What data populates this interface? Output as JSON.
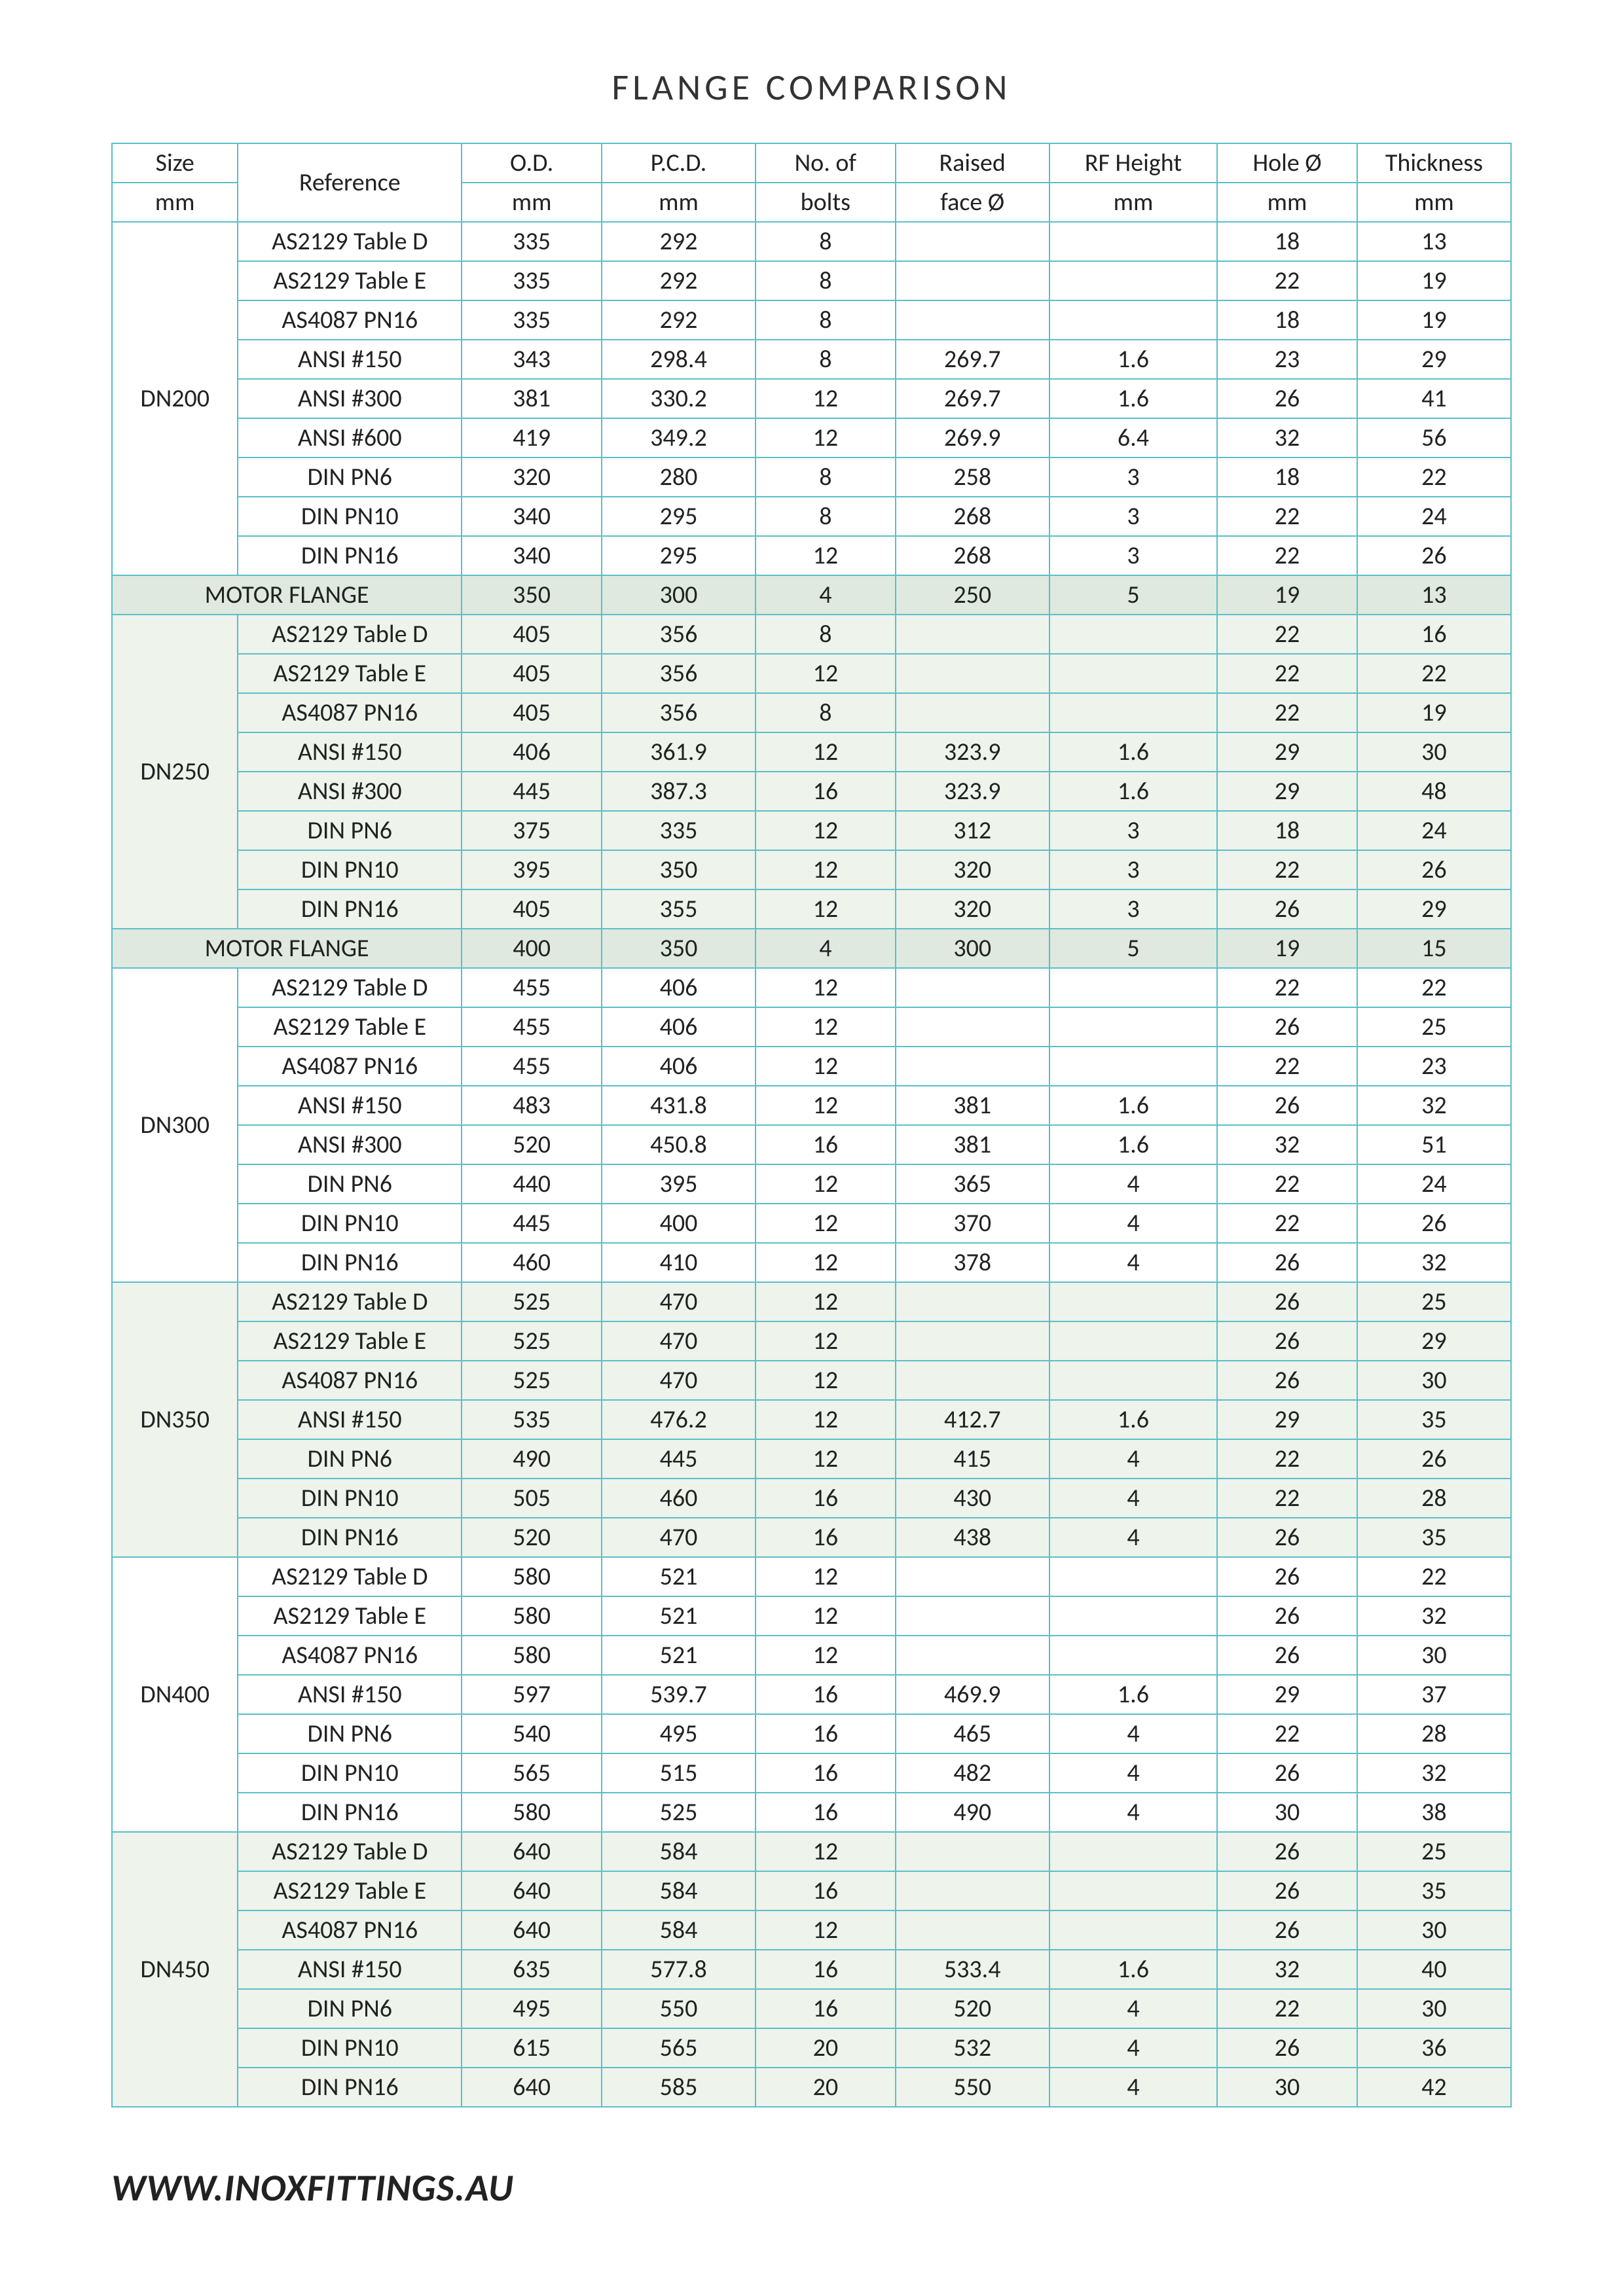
{
  "title": "FLANGE  COMPARISON",
  "footer": "WWW.INOXFITTINGS.AU",
  "colors": {
    "border": "#5bbfc8",
    "shade_bg": "#eef3ec",
    "motor_bg": "#dfe9df",
    "text": "#222222",
    "page_bg": "#ffffff"
  },
  "columns": [
    {
      "top": "Size",
      "bottom": "mm"
    },
    {
      "top": "Reference",
      "bottom": ""
    },
    {
      "top": "O.D.",
      "bottom": "mm"
    },
    {
      "top": "P.C.D.",
      "bottom": "mm"
    },
    {
      "top": "No. of",
      "bottom": "bolts"
    },
    {
      "top": "Raised",
      "bottom": "face Ø"
    },
    {
      "top": "RF Height",
      "bottom": "mm"
    },
    {
      "top": "Hole Ø",
      "bottom": "mm"
    },
    {
      "top": "Thickness",
      "bottom": "mm"
    }
  ],
  "groups": [
    {
      "size": "DN200",
      "shade": false,
      "rows": [
        {
          "ref": "AS2129 Table D",
          "od": "335",
          "pcd": "292",
          "bolts": "8",
          "rf": "",
          "rfh": "",
          "hole": "18",
          "thk": "13"
        },
        {
          "ref": "AS2129 Table E",
          "od": "335",
          "pcd": "292",
          "bolts": "8",
          "rf": "",
          "rfh": "",
          "hole": "22",
          "thk": "19"
        },
        {
          "ref": "AS4087 PN16",
          "od": "335",
          "pcd": "292",
          "bolts": "8",
          "rf": "",
          "rfh": "",
          "hole": "18",
          "thk": "19"
        },
        {
          "ref": "ANSI #150",
          "od": "343",
          "pcd": "298.4",
          "bolts": "8",
          "rf": "269.7",
          "rfh": "1.6",
          "hole": "23",
          "thk": "29"
        },
        {
          "ref": "ANSI #300",
          "od": "381",
          "pcd": "330.2",
          "bolts": "12",
          "rf": "269.7",
          "rfh": "1.6",
          "hole": "26",
          "thk": "41"
        },
        {
          "ref": "ANSI #600",
          "od": "419",
          "pcd": "349.2",
          "bolts": "12",
          "rf": "269.9",
          "rfh": "6.4",
          "hole": "32",
          "thk": "56"
        },
        {
          "ref": "DIN PN6",
          "od": "320",
          "pcd": "280",
          "bolts": "8",
          "rf": "258",
          "rfh": "3",
          "hole": "18",
          "thk": "22"
        },
        {
          "ref": "DIN PN10",
          "od": "340",
          "pcd": "295",
          "bolts": "8",
          "rf": "268",
          "rfh": "3",
          "hole": "22",
          "thk": "24"
        },
        {
          "ref": "DIN PN16",
          "od": "340",
          "pcd": "295",
          "bolts": "12",
          "rf": "268",
          "rfh": "3",
          "hole": "22",
          "thk": "26"
        }
      ],
      "motor": {
        "label": "MOTOR  FLANGE",
        "od": "350",
        "pcd": "300",
        "bolts": "4",
        "rf": "250",
        "rfh": "5",
        "hole": "19",
        "thk": "13"
      }
    },
    {
      "size": "DN250",
      "shade": true,
      "rows": [
        {
          "ref": "AS2129 Table D",
          "od": "405",
          "pcd": "356",
          "bolts": "8",
          "rf": "",
          "rfh": "",
          "hole": "22",
          "thk": "16"
        },
        {
          "ref": "AS2129 Table E",
          "od": "405",
          "pcd": "356",
          "bolts": "12",
          "rf": "",
          "rfh": "",
          "hole": "22",
          "thk": "22"
        },
        {
          "ref": "AS4087 PN16",
          "od": "405",
          "pcd": "356",
          "bolts": "8",
          "rf": "",
          "rfh": "",
          "hole": "22",
          "thk": "19"
        },
        {
          "ref": "ANSI #150",
          "od": "406",
          "pcd": "361.9",
          "bolts": "12",
          "rf": "323.9",
          "rfh": "1.6",
          "hole": "29",
          "thk": "30"
        },
        {
          "ref": "ANSI #300",
          "od": "445",
          "pcd": "387.3",
          "bolts": "16",
          "rf": "323.9",
          "rfh": "1.6",
          "hole": "29",
          "thk": "48"
        },
        {
          "ref": "DIN PN6",
          "od": "375",
          "pcd": "335",
          "bolts": "12",
          "rf": "312",
          "rfh": "3",
          "hole": "18",
          "thk": "24"
        },
        {
          "ref": "DIN PN10",
          "od": "395",
          "pcd": "350",
          "bolts": "12",
          "rf": "320",
          "rfh": "3",
          "hole": "22",
          "thk": "26"
        },
        {
          "ref": "DIN PN16",
          "od": "405",
          "pcd": "355",
          "bolts": "12",
          "rf": "320",
          "rfh": "3",
          "hole": "26",
          "thk": "29"
        }
      ],
      "motor": {
        "label": "MOTOR  FLANGE",
        "od": "400",
        "pcd": "350",
        "bolts": "4",
        "rf": "300",
        "rfh": "5",
        "hole": "19",
        "thk": "15"
      }
    },
    {
      "size": "DN300",
      "shade": false,
      "rows": [
        {
          "ref": "AS2129 Table D",
          "od": "455",
          "pcd": "406",
          "bolts": "12",
          "rf": "",
          "rfh": "",
          "hole": "22",
          "thk": "22"
        },
        {
          "ref": "AS2129 Table E",
          "od": "455",
          "pcd": "406",
          "bolts": "12",
          "rf": "",
          "rfh": "",
          "hole": "26",
          "thk": "25"
        },
        {
          "ref": "AS4087 PN16",
          "od": "455",
          "pcd": "406",
          "bolts": "12",
          "rf": "",
          "rfh": "",
          "hole": "22",
          "thk": "23"
        },
        {
          "ref": "ANSI #150",
          "od": "483",
          "pcd": "431.8",
          "bolts": "12",
          "rf": "381",
          "rfh": "1.6",
          "hole": "26",
          "thk": "32"
        },
        {
          "ref": "ANSI #300",
          "od": "520",
          "pcd": "450.8",
          "bolts": "16",
          "rf": "381",
          "rfh": "1.6",
          "hole": "32",
          "thk": "51"
        },
        {
          "ref": "DIN PN6",
          "od": "440",
          "pcd": "395",
          "bolts": "12",
          "rf": "365",
          "rfh": "4",
          "hole": "22",
          "thk": "24"
        },
        {
          "ref": "DIN PN10",
          "od": "445",
          "pcd": "400",
          "bolts": "12",
          "rf": "370",
          "rfh": "4",
          "hole": "22",
          "thk": "26"
        },
        {
          "ref": "DIN PN16",
          "od": "460",
          "pcd": "410",
          "bolts": "12",
          "rf": "378",
          "rfh": "4",
          "hole": "26",
          "thk": "32"
        }
      ]
    },
    {
      "size": "DN350",
      "shade": true,
      "rows": [
        {
          "ref": "AS2129 Table D",
          "od": "525",
          "pcd": "470",
          "bolts": "12",
          "rf": "",
          "rfh": "",
          "hole": "26",
          "thk": "25"
        },
        {
          "ref": "AS2129 Table E",
          "od": "525",
          "pcd": "470",
          "bolts": "12",
          "rf": "",
          "rfh": "",
          "hole": "26",
          "thk": "29"
        },
        {
          "ref": "AS4087 PN16",
          "od": "525",
          "pcd": "470",
          "bolts": "12",
          "rf": "",
          "rfh": "",
          "hole": "26",
          "thk": "30"
        },
        {
          "ref": "ANSI #150",
          "od": "535",
          "pcd": "476.2",
          "bolts": "12",
          "rf": "412.7",
          "rfh": "1.6",
          "hole": "29",
          "thk": "35"
        },
        {
          "ref": "DIN PN6",
          "od": "490",
          "pcd": "445",
          "bolts": "12",
          "rf": "415",
          "rfh": "4",
          "hole": "22",
          "thk": "26"
        },
        {
          "ref": "DIN PN10",
          "od": "505",
          "pcd": "460",
          "bolts": "16",
          "rf": "430",
          "rfh": "4",
          "hole": "22",
          "thk": "28"
        },
        {
          "ref": "DIN PN16",
          "od": "520",
          "pcd": "470",
          "bolts": "16",
          "rf": "438",
          "rfh": "4",
          "hole": "26",
          "thk": "35"
        }
      ]
    },
    {
      "size": "DN400",
      "shade": false,
      "rows": [
        {
          "ref": "AS2129 Table D",
          "od": "580",
          "pcd": "521",
          "bolts": "12",
          "rf": "",
          "rfh": "",
          "hole": "26",
          "thk": "22"
        },
        {
          "ref": "AS2129 Table E",
          "od": "580",
          "pcd": "521",
          "bolts": "12",
          "rf": "",
          "rfh": "",
          "hole": "26",
          "thk": "32"
        },
        {
          "ref": "AS4087 PN16",
          "od": "580",
          "pcd": "521",
          "bolts": "12",
          "rf": "",
          "rfh": "",
          "hole": "26",
          "thk": "30"
        },
        {
          "ref": "ANSI #150",
          "od": "597",
          "pcd": "539.7",
          "bolts": "16",
          "rf": "469.9",
          "rfh": "1.6",
          "hole": "29",
          "thk": "37"
        },
        {
          "ref": "DIN PN6",
          "od": "540",
          "pcd": "495",
          "bolts": "16",
          "rf": "465",
          "rfh": "4",
          "hole": "22",
          "thk": "28"
        },
        {
          "ref": "DIN PN10",
          "od": "565",
          "pcd": "515",
          "bolts": "16",
          "rf": "482",
          "rfh": "4",
          "hole": "26",
          "thk": "32"
        },
        {
          "ref": "DIN PN16",
          "od": "580",
          "pcd": "525",
          "bolts": "16",
          "rf": "490",
          "rfh": "4",
          "hole": "30",
          "thk": "38"
        }
      ]
    },
    {
      "size": "DN450",
      "shade": true,
      "rows": [
        {
          "ref": "AS2129 Table D",
          "od": "640",
          "pcd": "584",
          "bolts": "12",
          "rf": "",
          "rfh": "",
          "hole": "26",
          "thk": "25"
        },
        {
          "ref": "AS2129 Table E",
          "od": "640",
          "pcd": "584",
          "bolts": "16",
          "rf": "",
          "rfh": "",
          "hole": "26",
          "thk": "35"
        },
        {
          "ref": "AS4087 PN16",
          "od": "640",
          "pcd": "584",
          "bolts": "12",
          "rf": "",
          "rfh": "",
          "hole": "26",
          "thk": "30"
        },
        {
          "ref": "ANSI #150",
          "od": "635",
          "pcd": "577.8",
          "bolts": "16",
          "rf": "533.4",
          "rfh": "1.6",
          "hole": "32",
          "thk": "40"
        },
        {
          "ref": "DIN PN6",
          "od": "495",
          "pcd": "550",
          "bolts": "16",
          "rf": "520",
          "rfh": "4",
          "hole": "22",
          "thk": "30"
        },
        {
          "ref": "DIN PN10",
          "od": "615",
          "pcd": "565",
          "bolts": "20",
          "rf": "532",
          "rfh": "4",
          "hole": "26",
          "thk": "36"
        },
        {
          "ref": "DIN PN16",
          "od": "640",
          "pcd": "585",
          "bolts": "20",
          "rf": "550",
          "rfh": "4",
          "hole": "30",
          "thk": "42"
        }
      ]
    }
  ]
}
